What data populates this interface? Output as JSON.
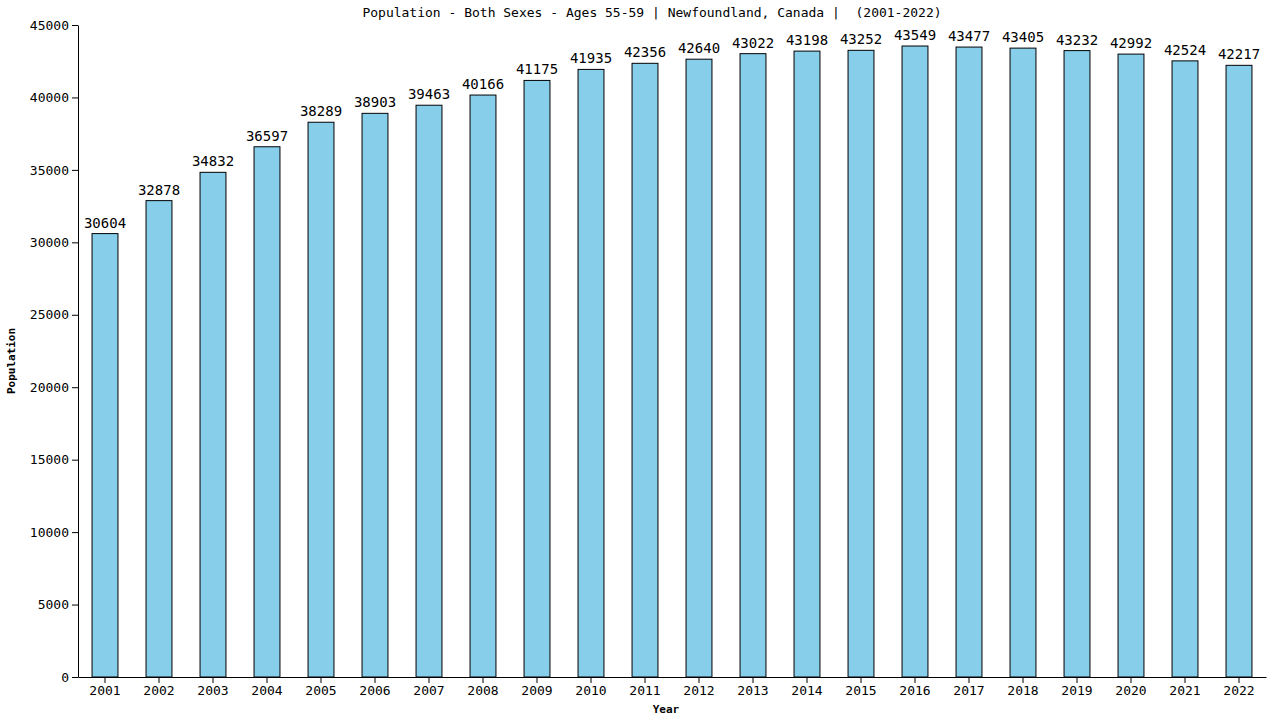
{
  "chart_data": {
    "type": "bar",
    "title": "Population - Both Sexes - Ages 55-59 | Newfoundland, Canada |  (2001-2022)",
    "x_label": "Year",
    "y_label": "Population",
    "categories": [
      "2001",
      "2002",
      "2003",
      "2004",
      "2005",
      "2006",
      "2007",
      "2008",
      "2009",
      "2010",
      "2011",
      "2012",
      "2013",
      "2014",
      "2015",
      "2016",
      "2017",
      "2018",
      "2019",
      "2020",
      "2021",
      "2022"
    ],
    "values": [
      30604,
      32878,
      34832,
      36597,
      38289,
      38903,
      39463,
      40166,
      41175,
      41935,
      42356,
      42640,
      43022,
      43198,
      43252,
      43549,
      43477,
      43405,
      43232,
      42992,
      42524,
      42217
    ],
    "color": "#87ceeb",
    "ylim": [
      0,
      45000
    ],
    "yticks": [
      0,
      5000,
      10000,
      15000,
      20000,
      25000,
      30000,
      35000,
      40000,
      45000
    ],
    "grid": false,
    "data_labels": true
  }
}
